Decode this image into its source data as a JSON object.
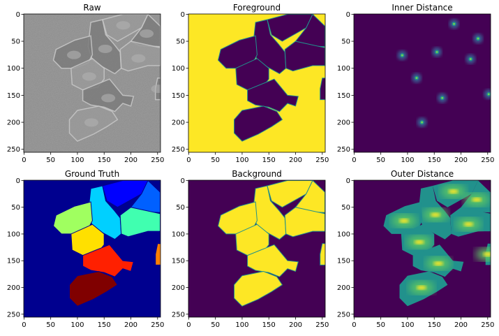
{
  "chart_data": [
    {
      "type": "heatmap",
      "title": "Raw",
      "render": "grayscale-cells",
      "xticks": [
        0,
        50,
        100,
        150,
        200,
        250
      ],
      "yticks": [
        0,
        50,
        100,
        150,
        200,
        250
      ],
      "xlim": [
        -0.5,
        255.5
      ],
      "ylim": [
        255.5,
        -0.5
      ],
      "grid": false
    },
    {
      "type": "heatmap",
      "title": "Foreground",
      "render": "foreground-mask",
      "xticks": [
        0,
        50,
        100,
        150,
        200,
        250
      ],
      "yticks": [
        0,
        50,
        100,
        150,
        200,
        250
      ],
      "xlim": [
        -0.5,
        255.5
      ],
      "ylim": [
        255.5,
        -0.5
      ],
      "grid": false
    },
    {
      "type": "heatmap",
      "title": "Inner Distance",
      "render": "inner-distance",
      "peaks": [
        [
          187,
          18
        ],
        [
          232,
          45
        ],
        [
          90,
          76
        ],
        [
          155,
          70
        ],
        [
          218,
          83
        ],
        [
          117,
          118
        ],
        [
          165,
          155
        ],
        [
          252,
          148
        ],
        [
          127,
          200
        ]
      ],
      "xticks": [
        0,
        50,
        100,
        150,
        200,
        250
      ],
      "yticks": [
        0,
        50,
        100,
        150,
        200,
        250
      ],
      "xlim": [
        -0.5,
        255.5
      ],
      "ylim": [
        255.5,
        -0.5
      ],
      "grid": false
    },
    {
      "type": "heatmap",
      "title": "Ground Truth",
      "render": "label-map",
      "xticks": [
        0,
        50,
        100,
        150,
        200,
        250
      ],
      "yticks": [
        0,
        50,
        100,
        150,
        200,
        250
      ],
      "xlim": [
        -0.5,
        255.5
      ],
      "ylim": [
        255.5,
        -0.5
      ],
      "grid": false
    },
    {
      "type": "heatmap",
      "title": "Background",
      "render": "background-mask",
      "xticks": [
        0,
        50,
        100,
        150,
        200,
        250
      ],
      "yticks": [
        0,
        50,
        100,
        150,
        200,
        250
      ],
      "xlim": [
        -0.5,
        255.5
      ],
      "ylim": [
        255.5,
        -0.5
      ],
      "grid": false
    },
    {
      "type": "heatmap",
      "title": "Outer Distance",
      "render": "outer-distance",
      "xticks": [
        0,
        50,
        100,
        150,
        200,
        250
      ],
      "yticks": [
        0,
        50,
        100,
        150,
        200,
        250
      ],
      "xlim": [
        -0.5,
        255.5
      ],
      "ylim": [
        255.5,
        -0.5
      ],
      "grid": false
    }
  ],
  "colors": {
    "viridis_dark": "#440154",
    "viridis_yellow": "#fde725",
    "viridis_teal": "#21918c",
    "jet_navy": "#00008f",
    "jet_blue": "#0000ff",
    "jet_midblue": "#0060ff",
    "jet_cyan": "#00d0ff",
    "jet_aquamarine": "#40ffb0",
    "jet_lime": "#a0ff60",
    "jet_yellow": "#ffe000",
    "jet_red": "#ff2000",
    "jet_orange": "#ff8000",
    "jet_maroon": "#800000",
    "raw_gray": "#8a8a8a"
  },
  "cells": [
    {
      "label": "A",
      "jet": "jet_cyan",
      "poly": [
        [
          125,
          15
        ],
        [
          147,
          10
        ],
        [
          153,
          38
        ],
        [
          168,
          55
        ],
        [
          180,
          70
        ],
        [
          182,
          100
        ],
        [
          170,
          110
        ],
        [
          148,
          98
        ],
        [
          128,
          85
        ],
        [
          120,
          60
        ]
      ]
    },
    {
      "label": "B",
      "jet": "jet_blue",
      "poly": [
        [
          147,
          10
        ],
        [
          185,
          0
        ],
        [
          232,
          0
        ],
        [
          220,
          25
        ],
        [
          175,
          50
        ],
        [
          155,
          38
        ]
      ]
    },
    {
      "label": "C",
      "jet": "jet_midblue",
      "poly": [
        [
          232,
          0
        ],
        [
          255,
          22
        ],
        [
          255,
          60
        ],
        [
          215,
          58
        ],
        [
          200,
          50
        ],
        [
          220,
          25
        ]
      ]
    },
    {
      "label": "D",
      "jet": "jet_aquamarine",
      "poly": [
        [
          180,
          65
        ],
        [
          200,
          50
        ],
        [
          255,
          62
        ],
        [
          255,
          95
        ],
        [
          232,
          95
        ],
        [
          195,
          105
        ],
        [
          182,
          100
        ]
      ]
    },
    {
      "label": "E",
      "jet": "jet_lime",
      "poly": [
        [
          60,
          65
        ],
        [
          95,
          48
        ],
        [
          125,
          40
        ],
        [
          128,
          75
        ],
        [
          120,
          90
        ],
        [
          95,
          100
        ],
        [
          70,
          100
        ],
        [
          55,
          85
        ]
      ]
    },
    {
      "label": "F",
      "jet": "jet_yellow",
      "poly": [
        [
          88,
          100
        ],
        [
          128,
          82
        ],
        [
          150,
          100
        ],
        [
          150,
          120
        ],
        [
          138,
          135
        ],
        [
          110,
          140
        ],
        [
          90,
          130
        ]
      ]
    },
    {
      "label": "G",
      "jet": "jet_red",
      "poly": [
        [
          110,
          140
        ],
        [
          135,
          130
        ],
        [
          160,
          120
        ],
        [
          185,
          150
        ],
        [
          205,
          152
        ],
        [
          200,
          170
        ],
        [
          185,
          165
        ],
        [
          170,
          180
        ],
        [
          150,
          172
        ],
        [
          125,
          168
        ],
        [
          110,
          160
        ]
      ]
    },
    {
      "label": "H",
      "jet": "jet_maroon",
      "poly": [
        [
          85,
          195
        ],
        [
          100,
          178
        ],
        [
          140,
          170
        ],
        [
          165,
          180
        ],
        [
          175,
          195
        ],
        [
          155,
          208
        ],
        [
          130,
          222
        ],
        [
          100,
          235
        ],
        [
          85,
          220
        ]
      ]
    },
    {
      "label": "I",
      "jet": "jet_orange",
      "poly": [
        [
          250,
          118
        ],
        [
          256,
          118
        ],
        [
          256,
          158
        ],
        [
          246,
          158
        ],
        [
          246,
          138
        ]
      ]
    }
  ]
}
